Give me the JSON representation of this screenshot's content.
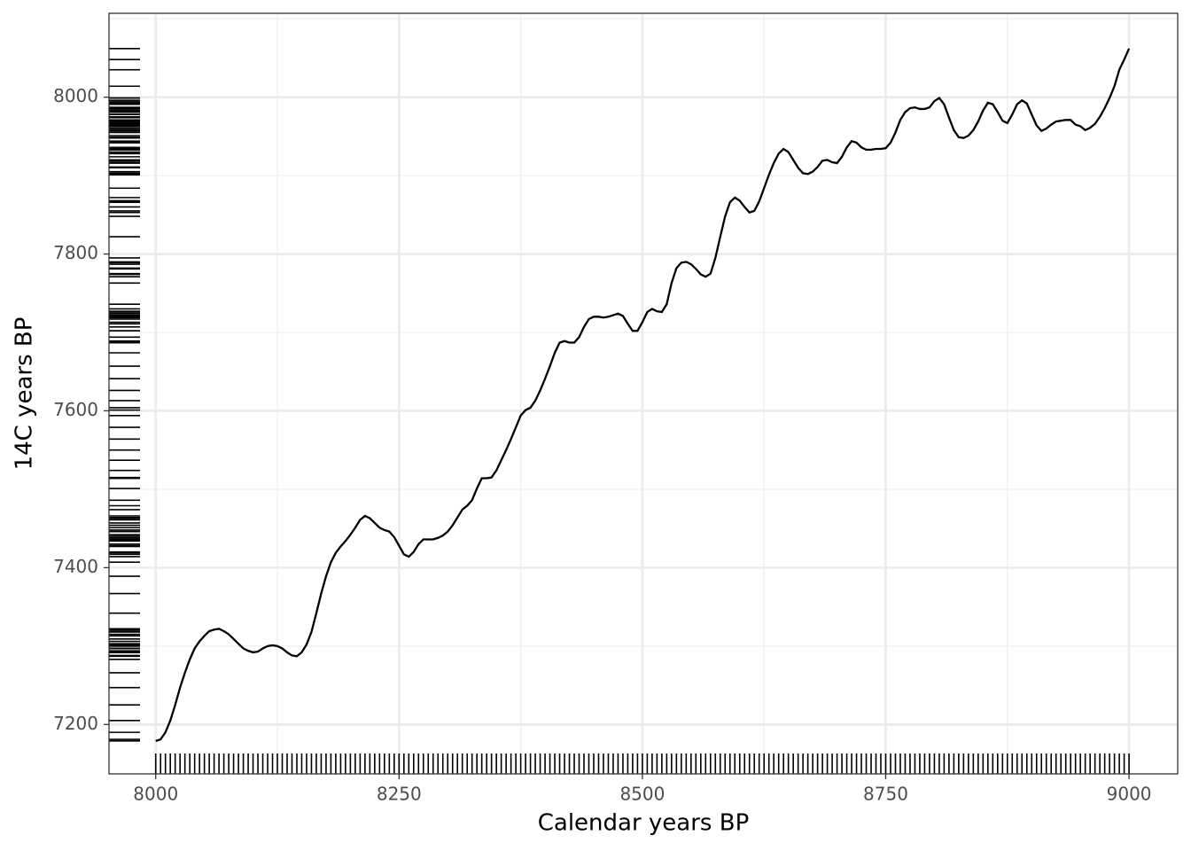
{
  "chart_data": {
    "type": "line",
    "xlabel": "Calendar years BP",
    "ylabel": "14C years BP",
    "xlim": [
      7952,
      9050
    ],
    "ylim": [
      7137,
      8107
    ],
    "xticks": [
      8000,
      8250,
      8500,
      8750,
      9000
    ],
    "yticks": [
      7200,
      7400,
      7600,
      7800,
      8000
    ],
    "grid": true,
    "rug": true,
    "series": [
      {
        "color": "#000000",
        "x": [
          8000,
          8005,
          8010,
          8015,
          8020,
          8025,
          8030,
          8035,
          8040,
          8045,
          8050,
          8055,
          8060,
          8065,
          8070,
          8075,
          8080,
          8085,
          8090,
          8095,
          8100,
          8105,
          8110,
          8115,
          8120,
          8125,
          8130,
          8135,
          8140,
          8145,
          8150,
          8155,
          8160,
          8165,
          8170,
          8175,
          8180,
          8185,
          8190,
          8195,
          8200,
          8205,
          8210,
          8215,
          8220,
          8225,
          8230,
          8235,
          8240,
          8245,
          8250,
          8255,
          8260,
          8265,
          8270,
          8275,
          8280,
          8285,
          8290,
          8295,
          8300,
          8305,
          8310,
          8315,
          8320,
          8325,
          8330,
          8335,
          8340,
          8345,
          8350,
          8355,
          8360,
          8365,
          8370,
          8375,
          8380,
          8385,
          8390,
          8395,
          8400,
          8405,
          8410,
          8415,
          8420,
          8425,
          8430,
          8435,
          8440,
          8445,
          8450,
          8455,
          8460,
          8465,
          8470,
          8475,
          8480,
          8485,
          8490,
          8495,
          8500,
          8505,
          8510,
          8515,
          8520,
          8525,
          8530,
          8535,
          8540,
          8545,
          8550,
          8555,
          8560,
          8565,
          8570,
          8575,
          8580,
          8585,
          8590,
          8595,
          8600,
          8605,
          8610,
          8615,
          8620,
          8625,
          8630,
          8635,
          8640,
          8645,
          8650,
          8655,
          8660,
          8665,
          8670,
          8675,
          8680,
          8685,
          8690,
          8695,
          8700,
          8705,
          8710,
          8715,
          8720,
          8725,
          8730,
          8735,
          8740,
          8745,
          8750,
          8755,
          8760,
          8765,
          8770,
          8775,
          8780,
          8785,
          8790,
          8795,
          8800,
          8805,
          8810,
          8815,
          8820,
          8825,
          8830,
          8835,
          8840,
          8845,
          8850,
          8855,
          8860,
          8865,
          8870,
          8875,
          8880,
          8885,
          8890,
          8895,
          8900,
          8905,
          8910,
          8915,
          8920,
          8925,
          8930,
          8935,
          8940,
          8945,
          8950,
          8955,
          8960,
          8965,
          8970,
          8975,
          8980,
          8985,
          8990,
          8995,
          9000
        ],
        "values": [
          7179,
          7181,
          7190,
          7205,
          7225,
          7247,
          7266,
          7283,
          7297,
          7306,
          7313,
          7319,
          7321,
          7322,
          7319,
          7315,
          7309,
          7303,
          7297,
          7294,
          7292,
          7293,
          7297,
          7300,
          7301,
          7300,
          7297,
          7292,
          7288,
          7287,
          7292,
          7302,
          7318,
          7342,
          7367,
          7389,
          7407,
          7419,
          7427,
          7434,
          7442,
          7451,
          7461,
          7466,
          7463,
          7457,
          7451,
          7448,
          7446,
          7439,
          7428,
          7417,
          7414,
          7420,
          7430,
          7436,
          7436,
          7436,
          7438,
          7441,
          7446,
          7454,
          7464,
          7474,
          7479,
          7486,
          7501,
          7514,
          7514,
          7515,
          7524,
          7537,
          7550,
          7564,
          7579,
          7594,
          7601,
          7604,
          7613,
          7626,
          7641,
          7657,
          7674,
          7687,
          7689,
          7687,
          7687,
          7694,
          7707,
          7717,
          7720,
          7720,
          7719,
          7720,
          7722,
          7724,
          7721,
          7711,
          7702,
          7702,
          7713,
          7726,
          7730,
          7727,
          7726,
          7736,
          7763,
          7782,
          7789,
          7790,
          7787,
          7781,
          7774,
          7771,
          7775,
          7795,
          7822,
          7848,
          7866,
          7872,
          7868,
          7860,
          7853,
          7855,
          7867,
          7884,
          7901,
          7916,
          7928,
          7934,
          7930,
          7920,
          7910,
          7903,
          7902,
          7905,
          7911,
          7919,
          7920,
          7917,
          7916,
          7924,
          7936,
          7944,
          7942,
          7936,
          7933,
          7933,
          7934,
          7934,
          7935,
          7942,
          7955,
          7971,
          7981,
          7986,
          7987,
          7985,
          7985,
          7987,
          7995,
          7999,
          7991,
          7974,
          7958,
          7949,
          7948,
          7951,
          7958,
          7969,
          7983,
          7993,
          7991,
          7981,
          7970,
          7967,
          7978,
          7991,
          7996,
          7992,
          7978,
          7964,
          7957,
          7960,
          7965,
          7969,
          7970,
          7971,
          7971,
          7965,
          7963,
          7958,
          7961,
          7966,
          7975,
          7986,
          7999,
          8014,
          8035,
          8048,
          8062
        ]
      }
    ]
  }
}
